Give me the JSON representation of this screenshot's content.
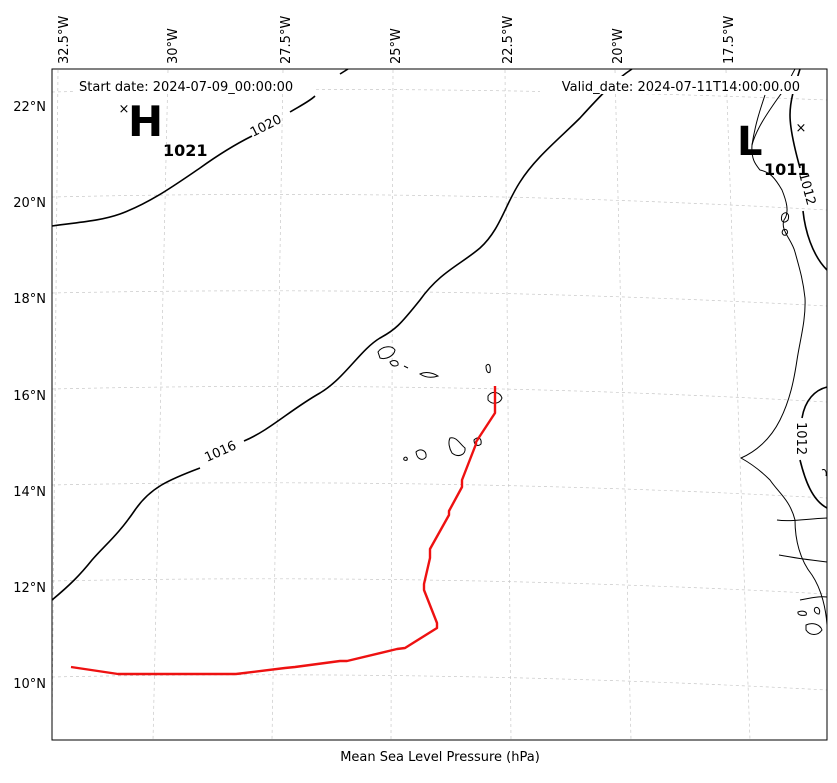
{
  "header": {
    "start_date": "Start date: 2024-07-09_00:00:00",
    "valid_date": "Valid_date: 2024-07-11T14:00:00.00"
  },
  "footer": {
    "xlabel": "Mean Sea Level Pressure (hPa)"
  },
  "axes": {
    "lon_labels": [
      "32.5°W",
      "30°W",
      "27.5°W",
      "25°W",
      "22.5°W",
      "20°W",
      "17.5°W"
    ],
    "lat_labels": [
      "22°N",
      "20°N",
      "18°N",
      "16°N",
      "14°N",
      "12°N",
      "10°N"
    ]
  },
  "pressure_centers": {
    "high": {
      "letter": "H",
      "value": "1021"
    },
    "low": {
      "letter": "L",
      "value": "1011"
    }
  },
  "isobar_labels": {
    "i1020": "1020",
    "i1016": "1016",
    "i1012_north": "1012",
    "i1012_south": "1012"
  },
  "colors": {
    "track": "#ee1111",
    "isobar": "#000000",
    "grid": "#c8c8c8"
  }
}
